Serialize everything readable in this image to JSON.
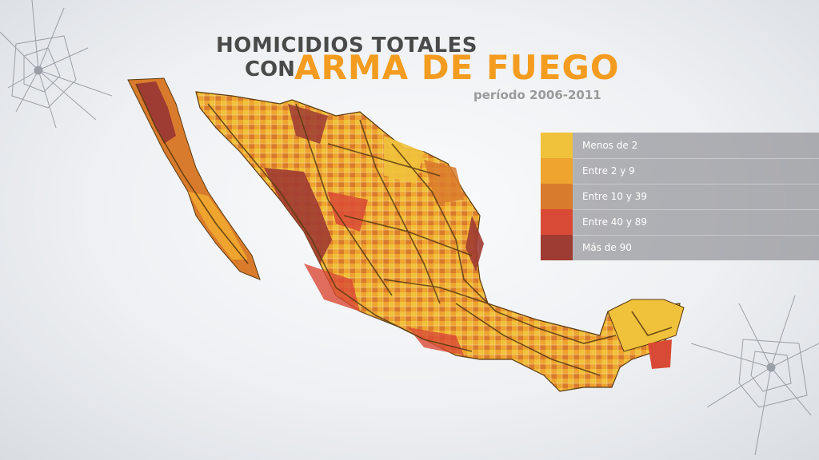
{
  "title": {
    "line1": "HOMICIDIOS TOTALES",
    "line2_prefix": "CON",
    "line2_highlight": "ARMA DE FUEGO",
    "subtitle": "período 2006-2011"
  },
  "legend": {
    "items": [
      {
        "label": "Menos de 2",
        "color": "#f0c23c"
      },
      {
        "label": "Entre 2 y 9",
        "color": "#eea42e"
      },
      {
        "label": "Entre 10 y 39",
        "color": "#d97b2c"
      },
      {
        "label": "Entre 40 y 89",
        "color": "#d94a36"
      },
      {
        "label": "Más de 90",
        "color": "#9e3b32"
      }
    ]
  },
  "colors": {
    "title_dark": "#4a4a4a",
    "title_accent": "#f39c1f",
    "subtitle": "#9a9a9a",
    "road": "#5a3a10"
  },
  "map": {
    "region": "Mexico",
    "map_type": "choropleth"
  }
}
